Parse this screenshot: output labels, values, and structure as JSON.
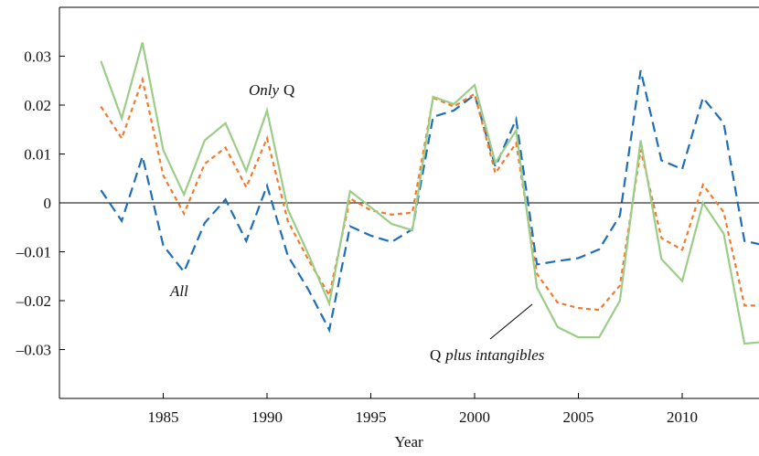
{
  "chart_data": {
    "type": "line",
    "x_label": "Year",
    "x": [
      1982,
      1983,
      1984,
      1985,
      1986,
      1987,
      1988,
      1989,
      1990,
      1991,
      1992,
      1993,
      1994,
      1995,
      1996,
      1997,
      1998,
      1999,
      2000,
      2001,
      2002,
      2003,
      2004,
      2005,
      2006,
      2007,
      2008,
      2009,
      2010,
      2011,
      2012,
      2013,
      2014
    ],
    "series": [
      {
        "name": "All",
        "color": "#1f6db5",
        "dash": "long",
        "values": [
          0.0026,
          -0.0037,
          0.0095,
          -0.0087,
          -0.0141,
          -0.0041,
          0.0007,
          -0.0078,
          0.0035,
          -0.0108,
          -0.0178,
          -0.026,
          -0.0048,
          -0.0067,
          -0.008,
          -0.0054,
          0.0176,
          0.0189,
          0.0221,
          0.0074,
          0.0171,
          -0.0126,
          -0.0119,
          -0.0113,
          -0.0095,
          -0.0026,
          0.0271,
          0.0087,
          0.0069,
          0.0215,
          0.0163,
          -0.0078,
          -0.0087
        ]
      },
      {
        "name": "Q plus intangibles",
        "color": "#f07b2e",
        "dash": "short",
        "values": [
          0.0197,
          0.0132,
          0.0252,
          0.0056,
          -0.0022,
          0.008,
          0.0113,
          0.0032,
          0.0132,
          -0.0037,
          -0.0117,
          -0.0189,
          0.0009,
          -0.0015,
          -0.0024,
          -0.002,
          0.0215,
          0.0197,
          0.0223,
          0.0061,
          0.0122,
          -0.0145,
          -0.0204,
          -0.0215,
          -0.0219,
          -0.0169,
          0.0109,
          -0.0072,
          -0.0096,
          0.0037,
          -0.0019,
          -0.021,
          -0.021
        ]
      },
      {
        "name": "Only Q",
        "color": "#9bcd88",
        "dash": "solid",
        "values": [
          0.029,
          0.0173,
          0.0328,
          0.0108,
          0.0017,
          0.0128,
          0.0163,
          0.0065,
          0.0189,
          -0.0013,
          -0.0106,
          -0.0206,
          0.0024,
          -0.0009,
          -0.0043,
          -0.0056,
          0.0217,
          0.0202,
          0.0241,
          0.0082,
          0.0148,
          -0.0173,
          -0.0254,
          -0.0275,
          -0.0275,
          -0.02,
          0.0128,
          -0.0115,
          -0.016,
          0,
          -0.0063,
          -0.0288,
          -0.0284
        ]
      }
    ],
    "annotations": [
      {
        "parts": [
          {
            "text": "Only",
            "italic": true
          },
          {
            "text": "Q",
            "italic": false
          }
        ]
      },
      {
        "parts": [
          {
            "text": "All",
            "italic": true
          }
        ]
      },
      {
        "parts": [
          {
            "text": "Q",
            "italic": false
          },
          {
            "text": "plus intangibles",
            "italic": true
          }
        ]
      }
    ],
    "xlim": [
      1980,
      2013.7
    ],
    "ylim": [
      -0.04,
      0.04
    ],
    "xticks": [
      1985,
      1990,
      1995,
      2000,
      2005,
      2010
    ],
    "yticks": [
      0.03,
      0.02,
      0.01,
      0,
      {
        "value": -0.01,
        "label": "–0.01"
      },
      {
        "value": -0.02,
        "label": "–0.02"
      },
      {
        "value": -0.03,
        "label": "–0.03"
      }
    ],
    "zero_line": true
  }
}
